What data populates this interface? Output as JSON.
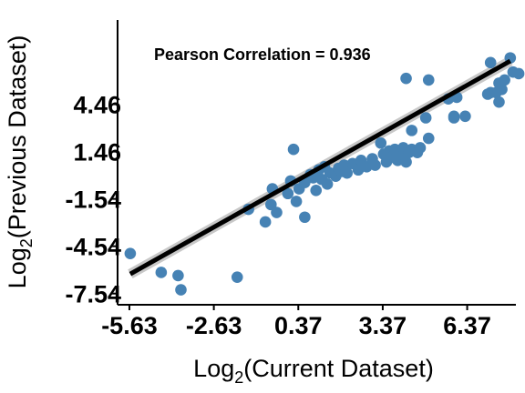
{
  "chart_data": {
    "type": "scatter",
    "title": "",
    "annotation": "Pearson Correlation = 0.936",
    "xlabel": {
      "base": "Log",
      "sub": "2",
      "rest": "(Current Dataset)"
    },
    "ylabel": {
      "base": "Log",
      "sub": "2",
      "rest": "(Previous Dataset)"
    },
    "x_ticks": [
      -5.63,
      -2.63,
      0.37,
      3.37,
      6.37
    ],
    "y_ticks": [
      -7.54,
      -4.54,
      -1.54,
      1.46,
      4.46
    ],
    "x_tick_labels": [
      "-5.63",
      "-2.63",
      "0.37",
      "3.37",
      "6.37"
    ],
    "y_tick_labels": [
      "-7.54",
      "-4.54",
      "-1.54",
      "1.46",
      "4.46"
    ],
    "xlim": [
      -6.05,
      8.1
    ],
    "ylim": [
      -8.25,
      9.8
    ],
    "grid": false,
    "point_color": "#4682b4",
    "line_color": "#000000",
    "band_color": "#c8c8c8",
    "fit_line": {
      "x": [
        -5.6,
        7.9
      ],
      "y": [
        -6.3,
        7.2
      ]
    },
    "points": [
      {
        "x": -5.6,
        "y": -5.0
      },
      {
        "x": -4.5,
        "y": -6.2
      },
      {
        "x": -3.9,
        "y": -6.4
      },
      {
        "x": -3.8,
        "y": -7.3
      },
      {
        "x": -1.8,
        "y": -6.5
      },
      {
        "x": -1.4,
        "y": -2.2
      },
      {
        "x": -0.55,
        "y": -0.9
      },
      {
        "x": -0.6,
        "y": -1.9
      },
      {
        "x": -0.8,
        "y": -3.0
      },
      {
        "x": -0.4,
        "y": -2.4
      },
      {
        "x": 0.0,
        "y": -1.2
      },
      {
        "x": 0.1,
        "y": -0.4
      },
      {
        "x": 0.2,
        "y": 1.6
      },
      {
        "x": 0.3,
        "y": -1.7
      },
      {
        "x": 0.4,
        "y": -0.9
      },
      {
        "x": 0.6,
        "y": -2.7
      },
      {
        "x": 0.6,
        "y": -0.5
      },
      {
        "x": 0.8,
        "y": 0.0
      },
      {
        "x": 0.9,
        "y": -0.2
      },
      {
        "x": 1.0,
        "y": -1.0
      },
      {
        "x": 1.1,
        "y": 0.3
      },
      {
        "x": 1.2,
        "y": -0.3
      },
      {
        "x": 1.3,
        "y": 0.5
      },
      {
        "x": 1.4,
        "y": -0.6
      },
      {
        "x": 1.5,
        "y": 0.1
      },
      {
        "x": 1.7,
        "y": -0.1
      },
      {
        "x": 1.8,
        "y": 0.4
      },
      {
        "x": 1.9,
        "y": 0.2
      },
      {
        "x": 2.0,
        "y": 0.6
      },
      {
        "x": 2.1,
        "y": 0.1
      },
      {
        "x": 2.3,
        "y": 0.7
      },
      {
        "x": 2.5,
        "y": 0.3
      },
      {
        "x": 2.6,
        "y": 0.9
      },
      {
        "x": 2.8,
        "y": 0.5
      },
      {
        "x": 3.0,
        "y": 1.0
      },
      {
        "x": 3.1,
        "y": 0.6
      },
      {
        "x": 3.3,
        "y": 2.0
      },
      {
        "x": 3.4,
        "y": 1.3
      },
      {
        "x": 3.5,
        "y": 0.8
      },
      {
        "x": 3.6,
        "y": 1.5
      },
      {
        "x": 3.7,
        "y": 1.1
      },
      {
        "x": 3.8,
        "y": 1.6
      },
      {
        "x": 3.9,
        "y": 0.9
      },
      {
        "x": 4.0,
        "y": 1.3
      },
      {
        "x": 4.1,
        "y": 1.7
      },
      {
        "x": 4.2,
        "y": 0.8
      },
      {
        "x": 4.3,
        "y": 1.4
      },
      {
        "x": 4.4,
        "y": 1.6
      },
      {
        "x": 4.6,
        "y": 1.4
      },
      {
        "x": 4.2,
        "y": 6.1
      },
      {
        "x": 4.9,
        "y": 3.6
      },
      {
        "x": 4.7,
        "y": 1.7
      },
      {
        "x": 5.0,
        "y": 2.3
      },
      {
        "x": 5.9,
        "y": 3.7
      },
      {
        "x": 5.9,
        "y": 3.6
      },
      {
        "x": 6.3,
        "y": 3.7
      },
      {
        "x": 7.2,
        "y": 5.2
      },
      {
        "x": 7.5,
        "y": 5.8
      },
      {
        "x": 7.6,
        "y": 5.4
      },
      {
        "x": 7.7,
        "y": 6.0
      },
      {
        "x": 7.4,
        "y": 5.2
      },
      {
        "x": 7.5,
        "y": 4.6
      },
      {
        "x": 8.0,
        "y": 6.5
      },
      {
        "x": 7.9,
        "y": 7.4
      },
      {
        "x": 8.2,
        "y": 6.4
      },
      {
        "x": 7.2,
        "y": 7.1
      },
      {
        "x": 7.1,
        "y": 5.1
      },
      {
        "x": 6.0,
        "y": 4.9
      },
      {
        "x": 5.7,
        "y": 4.8
      },
      {
        "x": 4.4,
        "y": 2.8
      },
      {
        "x": 5.0,
        "y": 6.0
      }
    ]
  }
}
